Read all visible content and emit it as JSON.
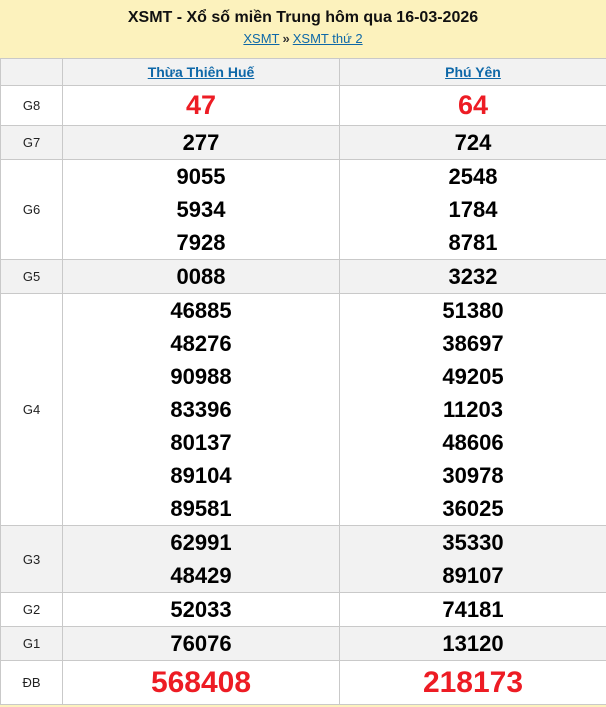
{
  "header": {
    "title": "XSMT - Xổ số miền Trung hôm qua 16-03-2026",
    "breadcrumb": {
      "items": [
        {
          "label": "XSMT"
        },
        {
          "label": "XSMT thứ 2"
        }
      ],
      "separator": "»"
    }
  },
  "table": {
    "columns": [
      "Thừa Thiên Huế",
      "Phú Yên"
    ],
    "rows": [
      {
        "label": "G8",
        "highlight": true,
        "size": "large",
        "values": [
          [
            "47"
          ],
          [
            "64"
          ]
        ]
      },
      {
        "label": "G7",
        "highlight": false,
        "size": "normal",
        "values": [
          [
            "277"
          ],
          [
            "724"
          ]
        ]
      },
      {
        "label": "G6",
        "highlight": false,
        "size": "normal",
        "values": [
          [
            "9055",
            "5934",
            "7928"
          ],
          [
            "2548",
            "1784",
            "8781"
          ]
        ]
      },
      {
        "label": "G5",
        "highlight": false,
        "size": "normal",
        "values": [
          [
            "0088"
          ],
          [
            "3232"
          ]
        ]
      },
      {
        "label": "G4",
        "highlight": false,
        "size": "normal",
        "values": [
          [
            "46885",
            "48276",
            "90988",
            "83396",
            "80137",
            "89104",
            "89581"
          ],
          [
            "51380",
            "38697",
            "49205",
            "11203",
            "48606",
            "30978",
            "36025"
          ]
        ]
      },
      {
        "label": "G3",
        "highlight": false,
        "size": "normal",
        "values": [
          [
            "62991",
            "48429"
          ],
          [
            "35330",
            "89107"
          ]
        ]
      },
      {
        "label": "G2",
        "highlight": false,
        "size": "normal",
        "values": [
          [
            "52033"
          ],
          [
            "74181"
          ]
        ]
      },
      {
        "label": "G1",
        "highlight": false,
        "size": "normal",
        "values": [
          [
            "76076"
          ],
          [
            "13120"
          ]
        ]
      },
      {
        "label": "ĐB",
        "highlight": true,
        "size": "xlarge",
        "values": [
          [
            "568408"
          ],
          [
            "218173"
          ]
        ]
      }
    ]
  },
  "colors": {
    "page_background": "#fcf2bd",
    "highlight_red": "#ed1c24",
    "link_blue": "#0e68a8",
    "row_alt_background": "#f2f2f2",
    "border": "#c9c9c9"
  }
}
